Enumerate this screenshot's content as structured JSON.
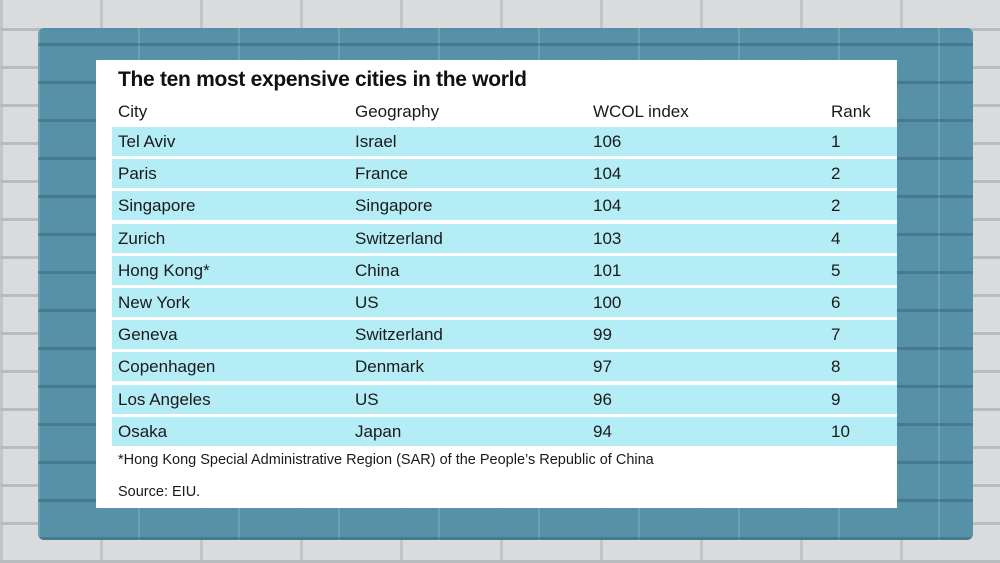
{
  "chart_data": {
    "type": "table",
    "title": "The ten most expensive cities in the world",
    "columns": [
      "City",
      "Geography",
      "WCOL index",
      "Rank"
    ],
    "rows": [
      [
        "Tel Aviv",
        "Israel",
        "106",
        "1"
      ],
      [
        "Paris",
        "France",
        "104",
        "2"
      ],
      [
        "Singapore",
        "Singapore",
        "104",
        "2"
      ],
      [
        "Zurich",
        "Switzerland",
        "103",
        "4"
      ],
      [
        "Hong Kong*",
        "China",
        "101",
        "5"
      ],
      [
        "New York",
        "US",
        "100",
        "6"
      ],
      [
        "Geneva",
        "Switzerland",
        "99",
        "7"
      ],
      [
        "Copenhagen",
        "Denmark",
        "97",
        "8"
      ],
      [
        "Los Angeles",
        "US",
        "96",
        "9"
      ],
      [
        "Osaka",
        "Japan",
        "94",
        "10"
      ]
    ],
    "footnote": "*Hong Kong Special Administrative Region (SAR) of the People’s Republic of China",
    "source": "Source: EIU.",
    "colors": {
      "row_fill": "#b5edf6",
      "background_paint": "#4f8ea6",
      "panel": "#ffffff"
    }
  }
}
